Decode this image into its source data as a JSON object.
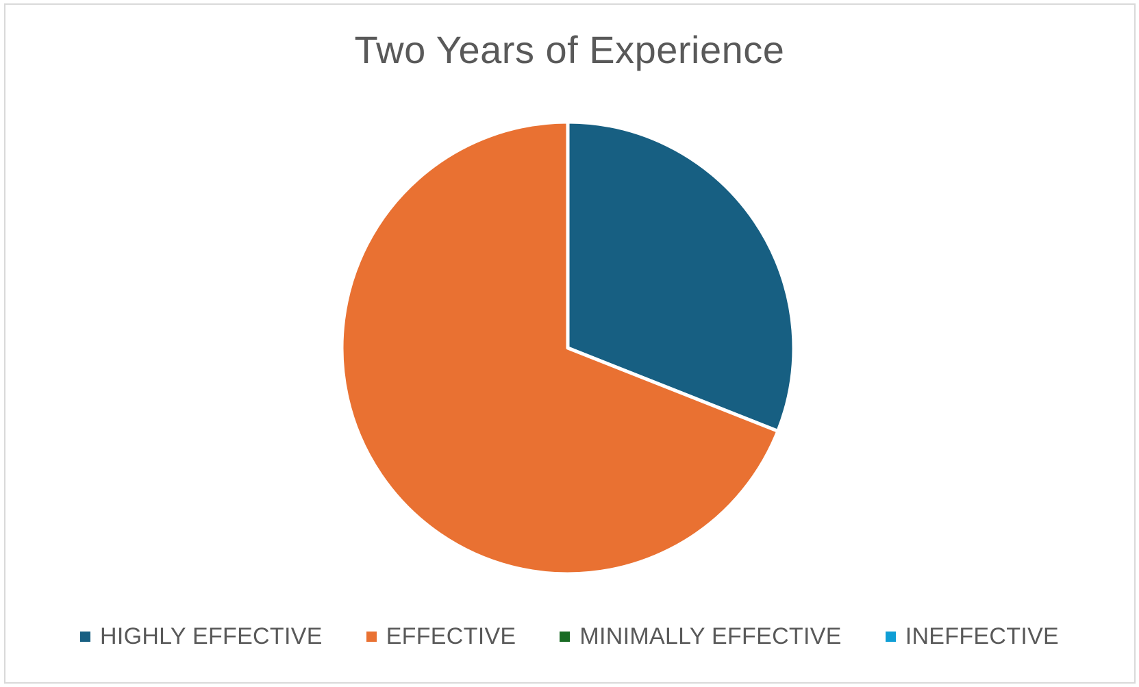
{
  "chart_data": {
    "type": "pie",
    "title": "Two Years of Experience",
    "categories": [
      "HIGHLY EFFECTIVE",
      "EFFECTIVE",
      "MINIMALLY EFFECTIVE",
      "INEFFECTIVE"
    ],
    "values": [
      31,
      69,
      0,
      0
    ],
    "colors": [
      "#175f82",
      "#e97132",
      "#196b24",
      "#0f9ed5"
    ],
    "legend_position": "bottom"
  }
}
